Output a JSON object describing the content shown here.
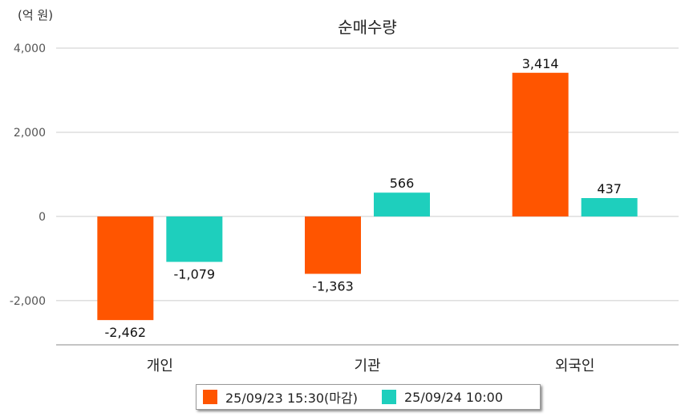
{
  "chart_data": {
    "type": "bar",
    "title": "순매수량",
    "unit_label": "(억 원)",
    "categories": [
      "개인",
      "기관",
      "외국인"
    ],
    "series": [
      {
        "name": "25/09/23 15:30(마감)",
        "color": "#ff5500",
        "values": [
          -2462,
          -1363,
          3414
        ],
        "labels": [
          "-2,462",
          "-1,363",
          "3,414"
        ]
      },
      {
        "name": "25/09/24 10:00",
        "color": "#1ecfbd",
        "values": [
          -1079,
          566,
          437
        ],
        "labels": [
          "-1,079",
          "566",
          "437"
        ]
      }
    ],
    "yticks": [
      4000,
      2000,
      0,
      -2000
    ],
    "ytick_labels": [
      "4,000",
      "2,000",
      "0",
      "-2,000"
    ],
    "ylim": [
      -3050,
      4000
    ],
    "grid": true,
    "legend_position": "bottom"
  }
}
